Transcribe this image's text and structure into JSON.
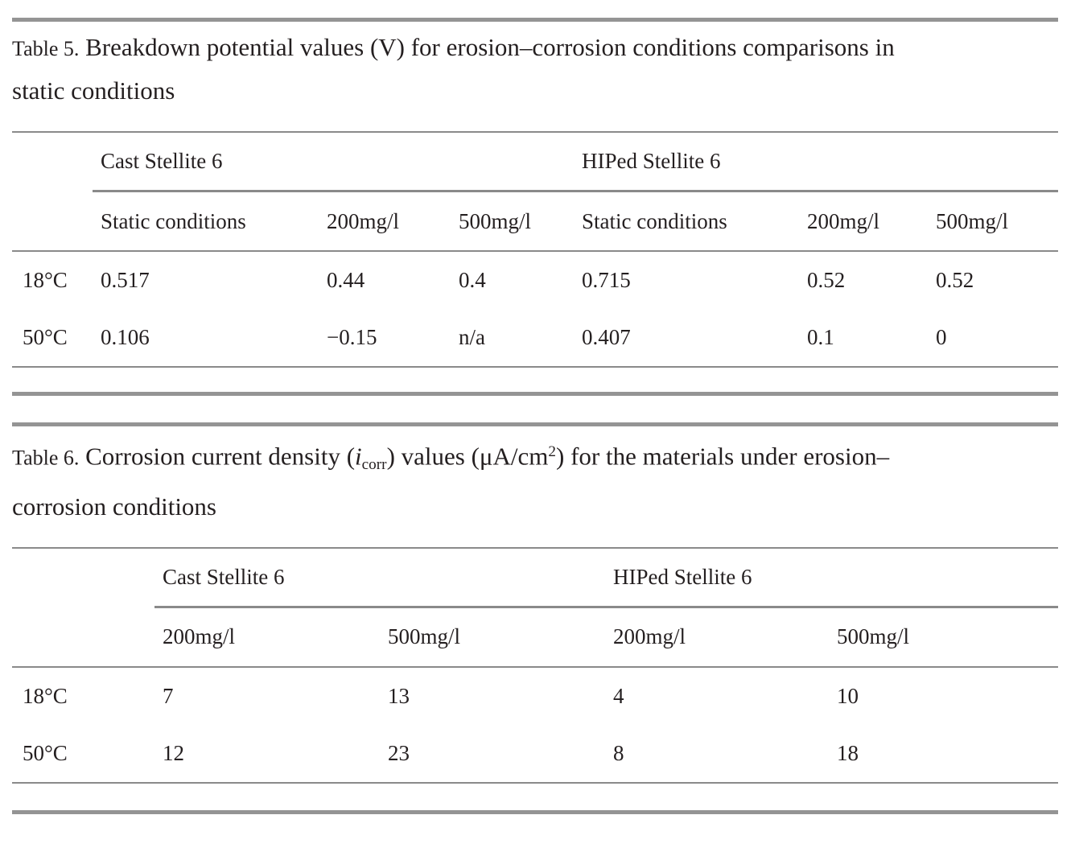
{
  "colors": {
    "text": "#241f20",
    "thick_rule": "#949494",
    "thin_rule": "#8a8a8a",
    "background": "#ffffff"
  },
  "table5": {
    "caption_prefix": "Table 5.",
    "caption_line1": " Breakdown potential values (V) for erosion–corrosion conditions comparisons in",
    "caption_line2": "static conditions",
    "group_headers": [
      "Cast Stellite 6",
      "HIPed Stellite 6"
    ],
    "sub_headers": [
      "Static conditions",
      "200mg/l",
      "500mg/l",
      "Static conditions",
      "200mg/l",
      "500mg/l"
    ],
    "rows": [
      {
        "label": "18°C",
        "values": [
          "0.517",
          "0.44",
          "0.4",
          "0.715",
          "0.52",
          "0.52"
        ]
      },
      {
        "label": "50°C",
        "values": [
          "0.106",
          "−0.15",
          "n/a",
          "0.407",
          "0.1",
          "0"
        ]
      }
    ]
  },
  "table6": {
    "caption_prefix": "Table 6.",
    "caption_part1": " Corrosion current density (",
    "caption_symbol_italic": "i",
    "caption_symbol_sub": "corr",
    "caption_part2": ") values (μA/cm",
    "caption_sup": "2",
    "caption_part3": ") for the materials under erosion–",
    "caption_line2": "corrosion conditions",
    "group_headers": [
      "Cast Stellite 6",
      "HIPed Stellite 6"
    ],
    "sub_headers": [
      "200mg/l",
      "500mg/l",
      "200mg/l",
      "500mg/l"
    ],
    "rows": [
      {
        "label": "18°C",
        "values": [
          "7",
          "13",
          "4",
          "10"
        ]
      },
      {
        "label": "50°C",
        "values": [
          "12",
          "23",
          "8",
          "18"
        ]
      }
    ]
  }
}
